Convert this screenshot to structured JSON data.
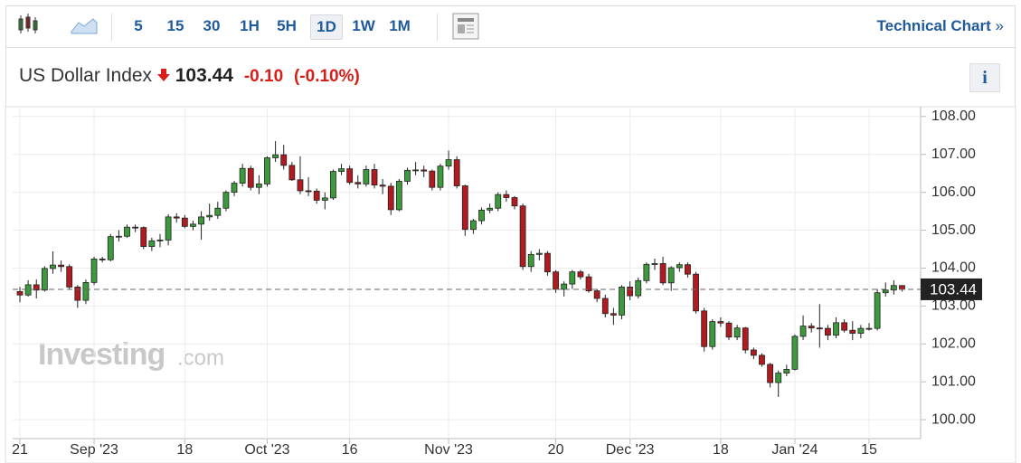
{
  "toolbar": {
    "intervals": [
      "5",
      "15",
      "30",
      "1H",
      "5H",
      "1D",
      "1W",
      "1M"
    ],
    "active": "1D",
    "link": "Technical Chart"
  },
  "header": {
    "title": "US Dollar Index",
    "price": "103.44",
    "change": "-0.10",
    "change_pct": "(-0.10%)",
    "info": "i"
  },
  "watermark": {
    "brand": "Investing",
    "suffix": ".com"
  },
  "chart_data": {
    "type": "candlestick",
    "up_color": "#3c9a3c",
    "down_color": "#b11a1f",
    "grid": true,
    "x": [
      "2023-08-21",
      "2023-08-22",
      "2023-08-23",
      "2023-08-24",
      "2023-08-25",
      "2023-08-28",
      "2023-08-29",
      "2023-08-30",
      "2023-08-31",
      "2023-09-01",
      "2023-09-04",
      "2023-09-05",
      "2023-09-06",
      "2023-09-07",
      "2023-09-08",
      "2023-09-11",
      "2023-09-12",
      "2023-09-13",
      "2023-09-14",
      "2023-09-15",
      "2023-09-18",
      "2023-09-19",
      "2023-09-20",
      "2023-09-21",
      "2023-09-22",
      "2023-09-25",
      "2023-09-26",
      "2023-09-27",
      "2023-09-28",
      "2023-09-29",
      "2023-10-02",
      "2023-10-03",
      "2023-10-04",
      "2023-10-05",
      "2023-10-06",
      "2023-10-09",
      "2023-10-10",
      "2023-10-11",
      "2023-10-12",
      "2023-10-13",
      "2023-10-16",
      "2023-10-17",
      "2023-10-18",
      "2023-10-19",
      "2023-10-20",
      "2023-10-23",
      "2023-10-24",
      "2023-10-25",
      "2023-10-26",
      "2023-10-27",
      "2023-10-30",
      "2023-10-31",
      "2023-11-01",
      "2023-11-02",
      "2023-11-03",
      "2023-11-06",
      "2023-11-07",
      "2023-11-08",
      "2023-11-09",
      "2023-11-10",
      "2023-11-13",
      "2023-11-14",
      "2023-11-15",
      "2023-11-16",
      "2023-11-17",
      "2023-11-20",
      "2023-11-21",
      "2023-11-22",
      "2023-11-23",
      "2023-11-24",
      "2023-11-27",
      "2023-11-28",
      "2023-11-29",
      "2023-11-30",
      "2023-12-01",
      "2023-12-04",
      "2023-12-05",
      "2023-12-06",
      "2023-12-07",
      "2023-12-08",
      "2023-12-11",
      "2023-12-12",
      "2023-12-13",
      "2023-12-14",
      "2023-12-15",
      "2023-12-18",
      "2023-12-19",
      "2023-12-20",
      "2023-12-21",
      "2023-12-22",
      "2023-12-26",
      "2023-12-27",
      "2023-12-28",
      "2023-12-29",
      "2024-01-02",
      "2024-01-03",
      "2024-01-04",
      "2024-01-05",
      "2024-01-08",
      "2024-01-09",
      "2024-01-10",
      "2024-01-11",
      "2024-01-12",
      "2024-01-15",
      "2024-01-16",
      "2024-01-17",
      "2024-01-18",
      "2024-01-19"
    ],
    "open": [
      103.38,
      103.29,
      103.56,
      103.42,
      103.99,
      104.08,
      104.04,
      103.5,
      103.15,
      103.62,
      104.24,
      104.22,
      104.83,
      104.84,
      105.08,
      105.07,
      104.57,
      104.72,
      104.74,
      105.35,
      105.32,
      105.1,
      105.16,
      105.35,
      105.39,
      105.58,
      106,
      106.24,
      106.63,
      106.13,
      106.22,
      106.91,
      106.99,
      106.71,
      106.33,
      106.04,
      106.03,
      105.79,
      105.85,
      106.55,
      106.62,
      106.26,
      106.22,
      106.6,
      106.19,
      106.16,
      105.54,
      106.29,
      106.58,
      106.59,
      106.56,
      106.13,
      106.69,
      106.86,
      106.17,
      105.02,
      105.25,
      105.53,
      105.58,
      105.94,
      105.86,
      105.64,
      104.04,
      104.36,
      104.39,
      103.9,
      103.44,
      103.58,
      103.9,
      103.77,
      103.4,
      103.2,
      102.8,
      102.76,
      103.5,
      103.27,
      103.67,
      104.1,
      104.12,
      103.61,
      104.01,
      104.09,
      103.84,
      102.87,
      101.93,
      102.59,
      102.55,
      102.18,
      102.42,
      101.84,
      101.7,
      101.46,
      100.98,
      101.23,
      101.33,
      102.2,
      102.47,
      102.42,
      102.41,
      102.23,
      102.56,
      102.36,
      102.28,
      102.41,
      102.41,
      103.35,
      103.42,
      103.54
    ],
    "high": [
      103.5,
      103.68,
      103.7,
      104.05,
      104.44,
      104.2,
      104.1,
      103.55,
      103.7,
      104.3,
      104.3,
      104.9,
      105,
      105.15,
      105.15,
      105.1,
      104.8,
      104.9,
      105.42,
      105.45,
      105.4,
      105.25,
      105.5,
      105.7,
      105.75,
      106.05,
      106.3,
      106.75,
      106.7,
      106.45,
      106.95,
      107.35,
      107.25,
      106.8,
      106.95,
      106.4,
      106.1,
      106,
      106.6,
      106.75,
      106.7,
      106.45,
      106.7,
      106.75,
      106.35,
      106.25,
      106.35,
      106.65,
      106.8,
      106.7,
      106.6,
      106.75,
      107.1,
      106.95,
      106.2,
      105.3,
      105.6,
      105.7,
      106,
      106.05,
      105.9,
      105.7,
      104.45,
      104.5,
      104.45,
      103.95,
      103.65,
      103.95,
      103.95,
      103.85,
      103.45,
      103.3,
      102.95,
      103.55,
      103.65,
      103.75,
      104.15,
      104.25,
      104.3,
      104.05,
      104.15,
      104.15,
      103.9,
      102.95,
      102.65,
      102.7,
      102.6,
      102.5,
      102.45,
      101.9,
      101.75,
      101.5,
      101.3,
      101.45,
      102.25,
      102.75,
      102.55,
      103.05,
      102.5,
      102.7,
      102.65,
      102.6,
      102.5,
      102.55,
      103.45,
      103.62,
      103.68,
      103.55
    ],
    "low": [
      103.1,
      103.25,
      103.2,
      103.38,
      103.85,
      103.9,
      103.45,
      102.95,
      103.05,
      103.55,
      104.15,
      104.18,
      104.7,
      104.8,
      104.95,
      104.5,
      104.45,
      104.55,
      104.6,
      105.2,
      105.05,
      105,
      104.75,
      105.25,
      105.3,
      105.5,
      105.9,
      106.15,
      106.05,
      105.95,
      106.15,
      106.8,
      106.6,
      106.3,
      105.95,
      105.9,
      105.7,
      105.55,
      105.8,
      106.45,
      106.2,
      106.1,
      106.15,
      106.1,
      105.95,
      105.4,
      105.5,
      106.2,
      106.45,
      106.4,
      106.05,
      106.05,
      106.6,
      106.1,
      104.85,
      104.9,
      105.15,
      105.45,
      105.5,
      105.75,
      105.55,
      103.95,
      103.9,
      104.2,
      103.8,
      103.35,
      103.25,
      103.45,
      103.7,
      103.35,
      103.1,
      102.7,
      102.5,
      102.65,
      103.15,
      103.2,
      103.6,
      103.95,
      103.55,
      103.4,
      103.9,
      103.75,
      102.8,
      101.8,
      101.85,
      102.45,
      102.1,
      102.1,
      101.75,
      101.6,
      101.4,
      100.85,
      100.6,
      101.15,
      101.3,
      102.1,
      102.3,
      101.9,
      102.1,
      102.15,
      102.3,
      102.1,
      102.15,
      102.35,
      102.35,
      103.25,
      103.3,
      103.38
    ],
    "close": [
      103.29,
      103.56,
      103.42,
      103.99,
      104.08,
      104.04,
      103.5,
      103.15,
      103.62,
      104.24,
      104.22,
      104.83,
      104.84,
      105.08,
      105.07,
      104.57,
      104.72,
      104.74,
      105.35,
      105.32,
      105.1,
      105.16,
      105.35,
      105.39,
      105.58,
      106,
      106.24,
      106.63,
      106.13,
      106.22,
      106.91,
      106.99,
      106.71,
      106.33,
      106.04,
      106.03,
      105.79,
      105.85,
      106.55,
      106.62,
      106.26,
      106.22,
      106.6,
      106.19,
      106.16,
      105.54,
      106.29,
      106.58,
      106.59,
      106.56,
      106.13,
      106.69,
      106.86,
      106.17,
      105.02,
      105.25,
      105.53,
      105.58,
      105.94,
      105.86,
      105.64,
      104.04,
      104.36,
      104.39,
      103.9,
      103.44,
      103.58,
      103.9,
      103.77,
      103.4,
      103.2,
      102.8,
      102.76,
      103.5,
      103.27,
      103.67,
      104.1,
      104.12,
      103.61,
      104.01,
      104.09,
      103.84,
      102.87,
      101.93,
      102.59,
      102.55,
      102.18,
      102.42,
      101.84,
      101.7,
      101.46,
      100.98,
      101.23,
      101.33,
      102.2,
      102.47,
      102.42,
      102.41,
      102.23,
      102.56,
      102.36,
      102.28,
      102.41,
      102.41,
      103.35,
      103.42,
      103.54,
      103.44
    ],
    "last_price": 103.44,
    "ylim": [
      99.55,
      108.21
    ],
    "yticks": [
      {
        "value": 100,
        "label": "100.00"
      },
      {
        "value": 101,
        "label": "101.00"
      },
      {
        "value": 102,
        "label": "102.00"
      },
      {
        "value": 103,
        "label": "103.00"
      },
      {
        "value": 104,
        "label": "104.00"
      },
      {
        "value": 105,
        "label": "105.00"
      },
      {
        "value": 106,
        "label": "106.00"
      },
      {
        "value": 107,
        "label": "107.00"
      },
      {
        "value": 108,
        "label": "108.00"
      }
    ],
    "xticks": [
      {
        "value": "2023-08-21",
        "label": "21"
      },
      {
        "value": "2023-09-01",
        "label": "Sep '23"
      },
      {
        "value": "2023-09-18",
        "label": "18"
      },
      {
        "value": "2023-10-02",
        "label": "Oct '23"
      },
      {
        "value": "2023-10-16",
        "label": "16"
      },
      {
        "value": "2023-11-01",
        "label": "Nov '23"
      },
      {
        "value": "2023-11-20",
        "label": "20"
      },
      {
        "value": "2023-12-01",
        "label": "Dec '23"
      },
      {
        "value": "2023-12-18",
        "label": "18"
      },
      {
        "value": "2024-01-02",
        "label": "Jan '24"
      },
      {
        "value": "2024-01-15",
        "label": "15"
      }
    ]
  }
}
